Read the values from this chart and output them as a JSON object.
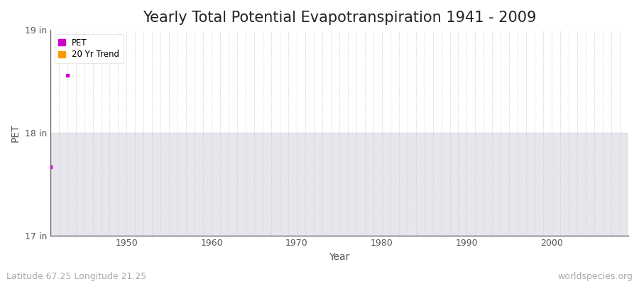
{
  "title": "Yearly Total Potential Evapotranspiration 1941 - 2009",
  "xlabel": "Year",
  "ylabel": "PET",
  "xlim": [
    1941,
    2009
  ],
  "ylim": [
    17,
    19
  ],
  "yticks": [
    17,
    18,
    19
  ],
  "ytick_labels": [
    "17 in",
    "18 in",
    "19 in"
  ],
  "xticks": [
    1950,
    1960,
    1970,
    1980,
    1990,
    2000
  ],
  "pet_data": [
    {
      "year": 1941,
      "value": 17.67
    },
    {
      "year": 1943,
      "value": 18.56
    }
  ],
  "pet_color": "#cc00cc",
  "trend_color": "#ff9900",
  "background_color": "#ffffff",
  "plot_bg_top": "#ffffff",
  "plot_bg_bottom": "#eeecef",
  "band_color": "#e8e5ec",
  "band_ymin": 17.0,
  "band_ymax": 18.0,
  "grid_color": "#cccccc",
  "title_fontsize": 15,
  "axis_label_fontsize": 10,
  "tick_fontsize": 9,
  "footer_left": "Latitude 67.25 Longitude 21.25",
  "footer_right": "worldspecies.org",
  "footer_fontsize": 9,
  "footer_color": "#aaaaaa",
  "spine_color": "#666666",
  "text_color": "#555555"
}
